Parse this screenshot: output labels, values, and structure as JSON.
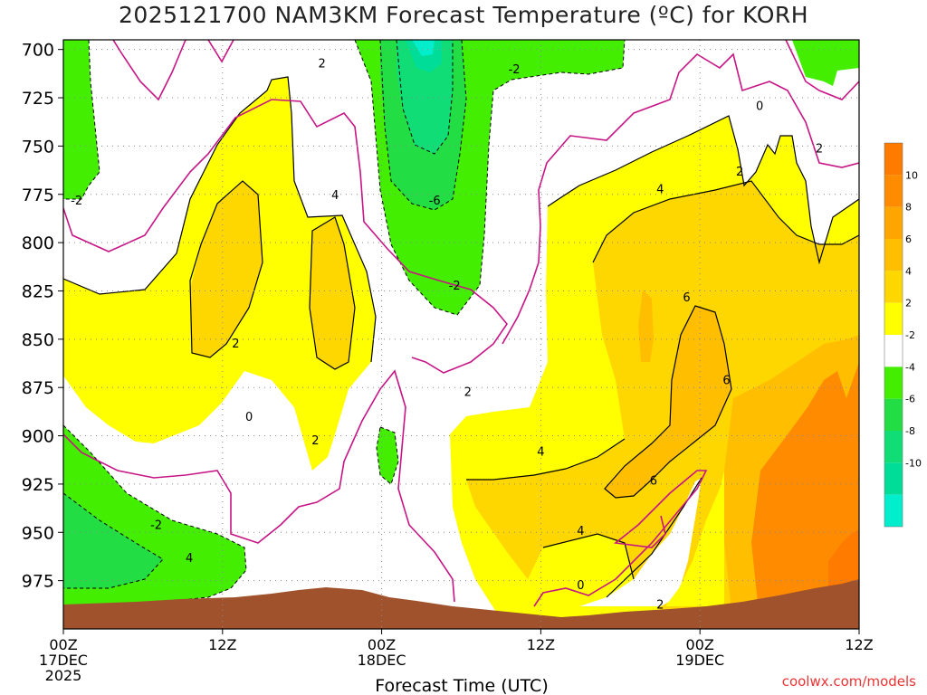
{
  "chart_data": {
    "type": "contour",
    "title": "2025121700 NAM3KM Forecast Temperature (ºC) for KORH",
    "xlabel": "Forecast Time (UTC)",
    "ylabel": "",
    "x_ticks": [
      {
        "hour": 0,
        "labels": [
          "00Z",
          "17DEC",
          "2025"
        ]
      },
      {
        "hour": 12,
        "labels": [
          "12Z"
        ]
      },
      {
        "hour": 24,
        "labels": [
          "00Z",
          "18DEC"
        ]
      },
      {
        "hour": 36,
        "labels": [
          "12Z"
        ]
      },
      {
        "hour": 48,
        "labels": [
          "00Z",
          "19DEC"
        ]
      },
      {
        "hour": 60,
        "labels": [
          "12Z"
        ]
      }
    ],
    "xlim": [
      0,
      60
    ],
    "y_ticks": [
      700,
      725,
      750,
      775,
      800,
      825,
      850,
      875,
      900,
      925,
      950,
      975
    ],
    "ylim": [
      695,
      1000
    ],
    "colorbar": [
      {
        "label": "10",
        "color": "#ff8c00"
      },
      {
        "label": "8",
        "color": "#ffa500"
      },
      {
        "label": "6",
        "color": "#ffbf00"
      },
      {
        "label": "4",
        "color": "#ffd700"
      },
      {
        "label": "2",
        "color": "#ffff00"
      },
      {
        "label": "-2",
        "color": "#ffffff"
      },
      {
        "label": "-4",
        "color": "#44ee00"
      },
      {
        "label": "-6",
        "color": "#22dd44"
      },
      {
        "label": "-8",
        "color": "#11dd77"
      },
      {
        "label": "-10",
        "color": "#00dd99"
      },
      {
        "label": "",
        "color": "#00eecc"
      }
    ],
    "colorbar_top_color": "#ff7b00",
    "terrain_color": "#a0522d",
    "zero_line_color": "#c71585",
    "contour_labels": [
      {
        "text": "2",
        "hour": 19.5,
        "p": 707
      },
      {
        "text": "-2",
        "hour": 34,
        "p": 710
      },
      {
        "text": "0",
        "hour": 52.5,
        "p": 729
      },
      {
        "text": "2",
        "hour": 57,
        "p": 751
      },
      {
        "text": "-2",
        "hour": 1,
        "p": 778
      },
      {
        "text": "-6",
        "hour": 28,
        "p": 778
      },
      {
        "text": "4",
        "hour": 20.5,
        "p": 775
      },
      {
        "text": "4",
        "hour": 45,
        "p": 772
      },
      {
        "text": "2",
        "hour": 51,
        "p": 763
      },
      {
        "text": "-2",
        "hour": 29.5,
        "p": 822
      },
      {
        "text": "6",
        "hour": 47,
        "p": 828
      },
      {
        "text": "2",
        "hour": 13,
        "p": 852
      },
      {
        "text": "6",
        "hour": 50,
        "p": 871
      },
      {
        "text": "0",
        "hour": 14,
        "p": 890
      },
      {
        "text": "2",
        "hour": 30.5,
        "p": 877
      },
      {
        "text": "2",
        "hour": 19,
        "p": 902
      },
      {
        "text": "4",
        "hour": 36,
        "p": 908
      },
      {
        "text": "6",
        "hour": 44.5,
        "p": 923
      },
      {
        "text": "-2",
        "hour": 7,
        "p": 946
      },
      {
        "text": "4",
        "hour": 39,
        "p": 949
      },
      {
        "text": "4",
        "hour": 9.5,
        "p": 963
      },
      {
        "text": "0",
        "hour": 39,
        "p": 977
      },
      {
        "text": "2",
        "hour": 45,
        "p": 987
      }
    ]
  },
  "watermark": "coolwx.com/models"
}
